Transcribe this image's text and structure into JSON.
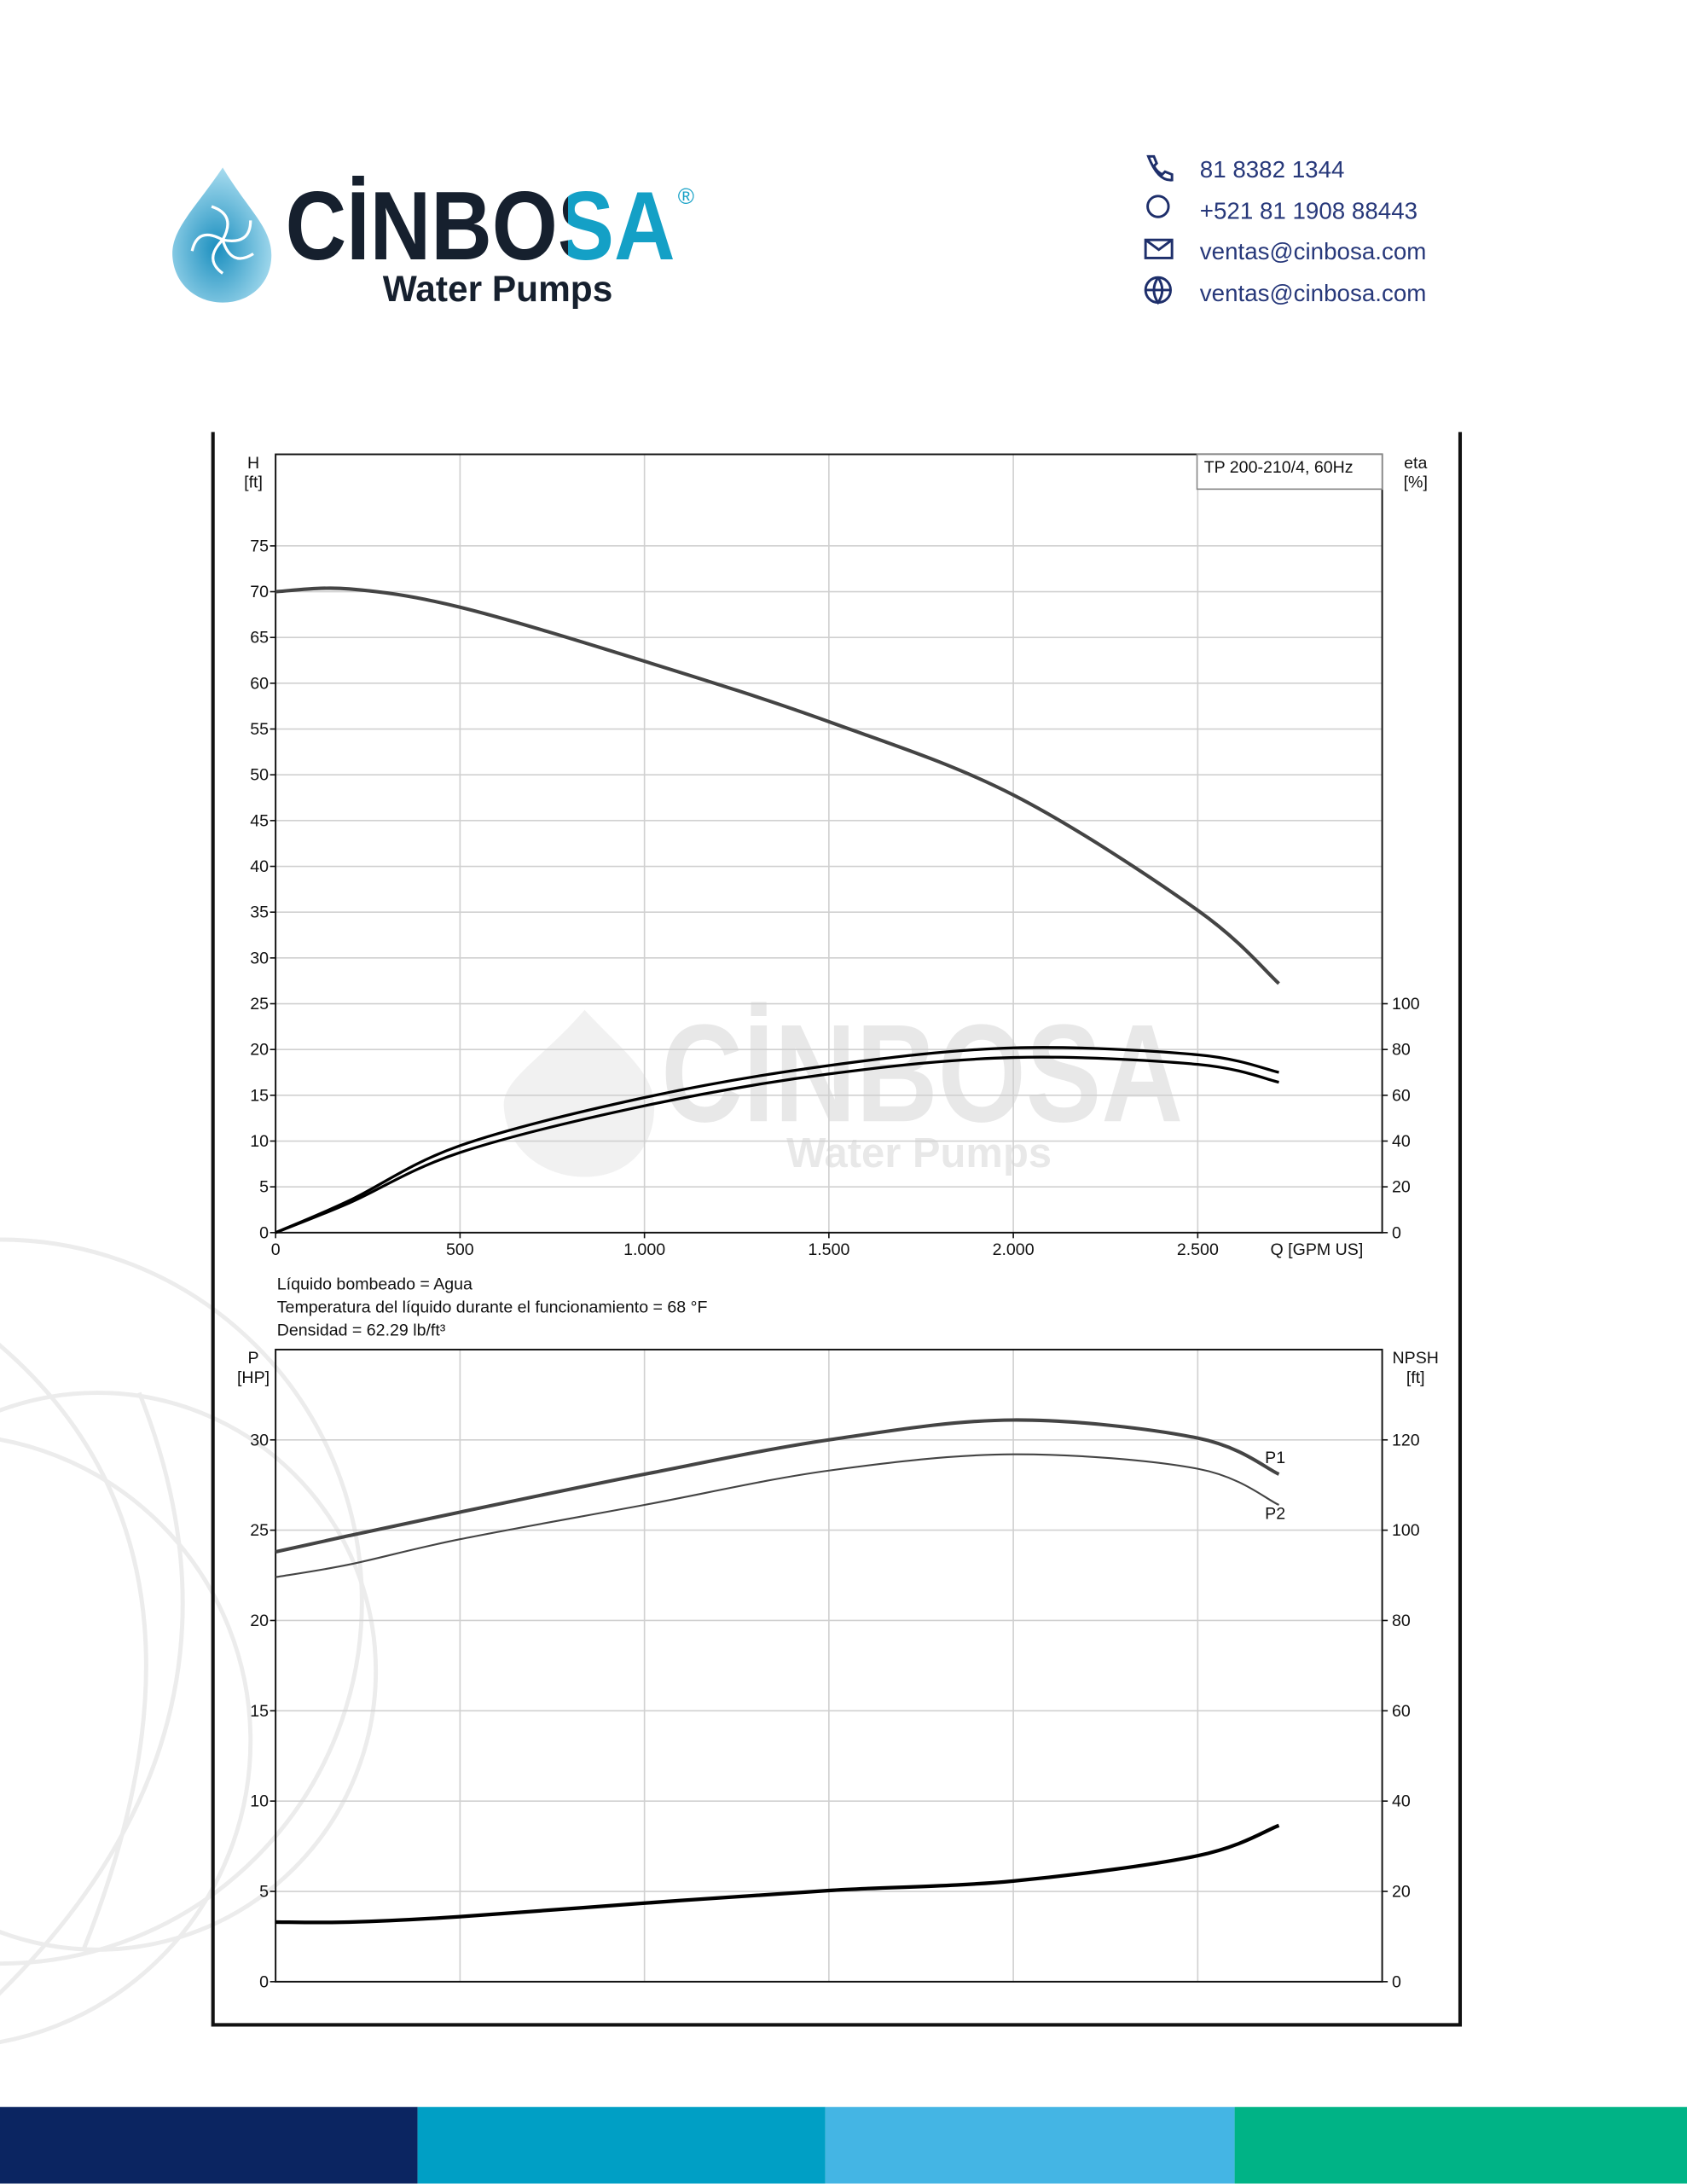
{
  "header": {
    "logo": "CİNBOSA",
    "registered": "®",
    "tagline": "Water Pumps"
  },
  "contacts": [
    "81 8382 1344",
    "+521 81 1908 88443",
    "ventas@cinbosa.com",
    "ventas@cinbosa.com"
  ],
  "chart_data": [
    {
      "type": "line",
      "annotation": "TP 200-210/4, 60Hz",
      "ylabel": [
        "H",
        "[ft]"
      ],
      "y2label": [
        "eta",
        "[%]"
      ],
      "xlabel": "Q [GPM US]",
      "x": [
        0,
        200,
        500,
        1000,
        1500,
        2000,
        2500,
        2720
      ],
      "xlim": [
        0,
        3000
      ],
      "xticks": [
        0,
        500,
        {
          "value": 1000,
          "label": "1.000"
        },
        {
          "value": 1500,
          "label": "1.500"
        },
        {
          "value": 2000,
          "label": "2.000"
        },
        {
          "value": 2500,
          "label": "2.500"
        }
      ],
      "ylim": [
        0,
        85
      ],
      "yticks": [
        0,
        5,
        10,
        15,
        20,
        25,
        30,
        35,
        40,
        45,
        50,
        55,
        60,
        65,
        70,
        75
      ],
      "y2lim": [
        0,
        340
      ],
      "y2ticks": [
        0,
        20,
        40,
        60,
        80,
        100
      ],
      "grid": true,
      "series": [
        {
          "color": "#444444",
          "values": [
            70,
            70.3,
            68.3,
            62.4,
            55.8,
            47.8,
            35.2,
            27.2
          ]
        },
        {
          "color": "#000000",
          "axis": "y2",
          "values": [
            0,
            14,
            38,
            59,
            73,
            80.7,
            77.7,
            70
          ]
        },
        {
          "color": "#000000",
          "axis": "y2",
          "values": [
            0,
            13,
            35,
            55.4,
            69.3,
            76.5,
            73.5,
            65.7
          ]
        }
      ]
    },
    {
      "type": "line",
      "notes": [
        "Líquido bombeado = Agua",
        "Temperatura del líquido durante el funcionamiento = 68 °F",
        "Densidad = 62.29 lb/ft³"
      ],
      "ylabel": [
        "P",
        "[HP]"
      ],
      "y2label": [
        "NPSH",
        "[ft]"
      ],
      "x": [
        0,
        200,
        500,
        1000,
        1500,
        2000,
        2500,
        2720
      ],
      "xlim": [
        0,
        3000
      ],
      "ylim": [
        0,
        35
      ],
      "yticks": [
        0,
        5,
        10,
        15,
        20,
        25,
        30
      ],
      "y2lim": [
        0,
        140
      ],
      "y2ticks": [
        0,
        20,
        40,
        60,
        80,
        100,
        120
      ],
      "grid": true,
      "series": [
        {
          "name": "P1",
          "color": "#444444",
          "values": [
            23.8,
            24.7,
            26,
            28.1,
            30,
            31.1,
            30.1,
            28.1
          ]
        },
        {
          "name": "P2",
          "color": "#444444",
          "values": [
            22.4,
            23.1,
            24.5,
            26.4,
            28.3,
            29.2,
            28.4,
            26.4
          ]
        },
        {
          "color": "#000000",
          "axis": "y2",
          "values": [
            13.2,
            13.2,
            14.4,
            17.4,
            20.2,
            22.3,
            27.9,
            34.6
          ]
        }
      ]
    }
  ]
}
